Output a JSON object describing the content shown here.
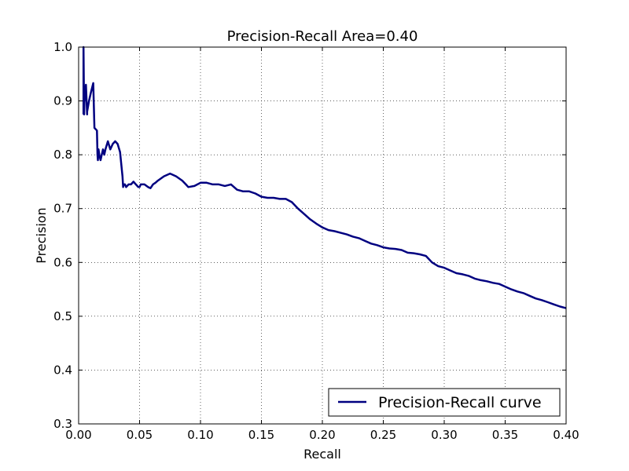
{
  "chart_data": {
    "type": "line",
    "title": "Precision-Recall Area=0.40",
    "xlabel": "Recall",
    "ylabel": "Precision",
    "xlim": [
      0.0,
      0.4
    ],
    "ylim": [
      0.3,
      1.0
    ],
    "grid": true,
    "legend_position": "lower-right",
    "x_ticks": [
      "0.00",
      "0.05",
      "0.10",
      "0.15",
      "0.20",
      "0.25",
      "0.30",
      "0.35",
      "0.40"
    ],
    "y_ticks": [
      "0.3",
      "0.4",
      "0.5",
      "0.6",
      "0.7",
      "0.8",
      "0.9",
      "1.0"
    ],
    "series": [
      {
        "name": "Precision-Recall curve",
        "color": "#000080",
        "x": [
          0.004,
          0.004,
          0.0045,
          0.0048,
          0.006,
          0.007,
          0.007,
          0.0085,
          0.01,
          0.012,
          0.013,
          0.015,
          0.0155,
          0.0158,
          0.0163,
          0.017,
          0.018,
          0.019,
          0.02,
          0.021,
          0.022,
          0.024,
          0.026,
          0.028,
          0.03,
          0.032,
          0.034,
          0.036,
          0.0365,
          0.037,
          0.038,
          0.039,
          0.041,
          0.043,
          0.045,
          0.047,
          0.049,
          0.05,
          0.051,
          0.054,
          0.057,
          0.059,
          0.061,
          0.063,
          0.065,
          0.07,
          0.075,
          0.08,
          0.085,
          0.088,
          0.09,
          0.095,
          0.1,
          0.105,
          0.11,
          0.115,
          0.12,
          0.125,
          0.13,
          0.135,
          0.14,
          0.145,
          0.15,
          0.155,
          0.16,
          0.165,
          0.17,
          0.175,
          0.18,
          0.185,
          0.19,
          0.195,
          0.2,
          0.205,
          0.21,
          0.215,
          0.22,
          0.225,
          0.23,
          0.235,
          0.24,
          0.245,
          0.25,
          0.255,
          0.26,
          0.265,
          0.27,
          0.275,
          0.28,
          0.285,
          0.29,
          0.295,
          0.3,
          0.305,
          0.31,
          0.315,
          0.32,
          0.325,
          0.33,
          0.335,
          0.34,
          0.345,
          0.35,
          0.355,
          0.36,
          0.365,
          0.37,
          0.375,
          0.38,
          0.385,
          0.39,
          0.395,
          0.4
        ],
        "y": [
          0.875,
          1.0,
          0.875,
          0.9,
          0.93,
          0.875,
          0.88,
          0.9,
          0.915,
          0.933,
          0.85,
          0.845,
          0.8,
          0.79,
          0.81,
          0.8,
          0.79,
          0.8,
          0.81,
          0.8,
          0.81,
          0.825,
          0.81,
          0.82,
          0.825,
          0.82,
          0.805,
          0.76,
          0.74,
          0.745,
          0.745,
          0.74,
          0.745,
          0.745,
          0.75,
          0.745,
          0.74,
          0.74,
          0.745,
          0.745,
          0.74,
          0.738,
          0.745,
          0.748,
          0.752,
          0.76,
          0.765,
          0.76,
          0.752,
          0.745,
          0.74,
          0.742,
          0.748,
          0.748,
          0.745,
          0.745,
          0.742,
          0.745,
          0.735,
          0.732,
          0.732,
          0.728,
          0.722,
          0.72,
          0.72,
          0.718,
          0.718,
          0.712,
          0.7,
          0.69,
          0.68,
          0.672,
          0.665,
          0.66,
          0.658,
          0.655,
          0.652,
          0.648,
          0.645,
          0.64,
          0.635,
          0.632,
          0.628,
          0.626,
          0.625,
          0.623,
          0.618,
          0.617,
          0.615,
          0.612,
          0.6,
          0.593,
          0.59,
          0.585,
          0.58,
          0.578,
          0.575,
          0.57,
          0.567,
          0.565,
          0.562,
          0.56,
          0.555,
          0.55,
          0.546,
          0.543,
          0.538,
          0.533,
          0.53,
          0.526,
          0.522,
          0.518,
          0.515
        ]
      }
    ]
  }
}
